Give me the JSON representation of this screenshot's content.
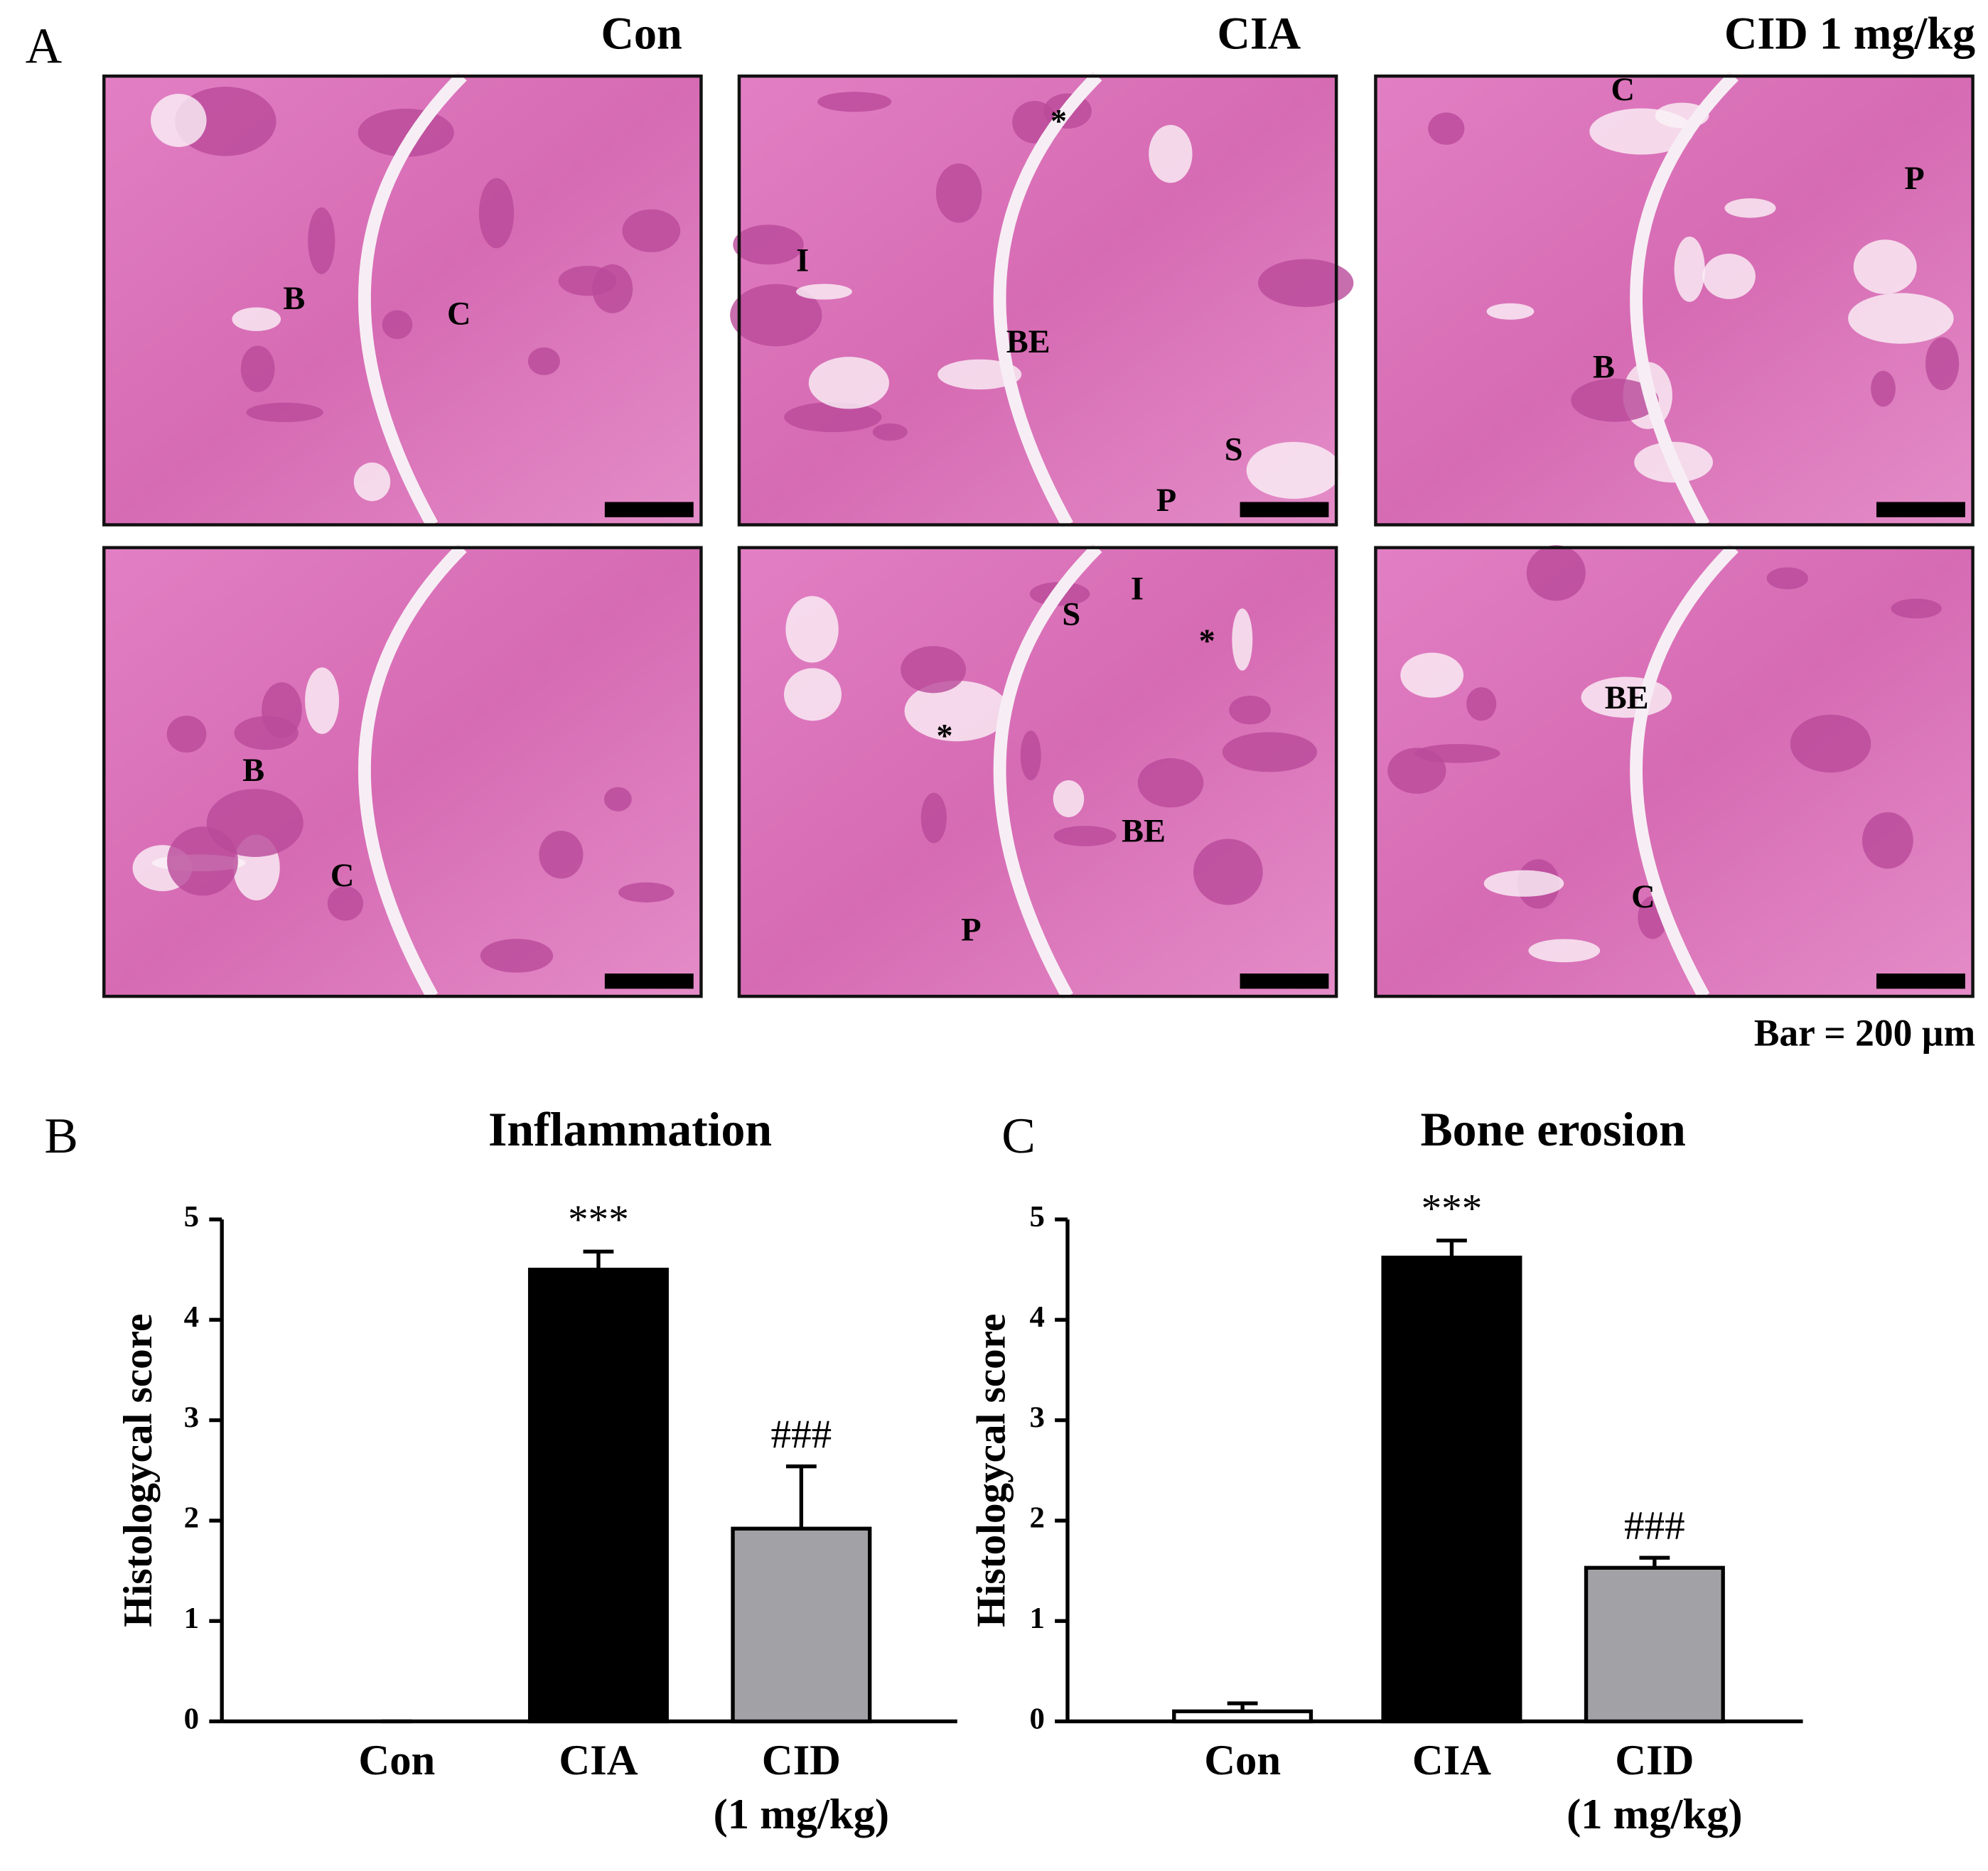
{
  "panel_a": {
    "label": "A",
    "columns": [
      "Con",
      "CIA",
      "CID 1 mg/kg"
    ],
    "images": [
      [
        "B",
        "C"
      ],
      [
        "*",
        "I",
        "BE",
        "S",
        "P"
      ],
      [
        "C",
        "P",
        "B"
      ],
      [
        "B",
        "C"
      ],
      [
        "S",
        "I",
        "*",
        "*",
        "BE",
        "P"
      ],
      [
        "BE",
        "C"
      ]
    ],
    "scale_note": "Bar = 200 µm"
  },
  "chart_data": [
    {
      "type": "bar",
      "panel_label": "B",
      "title": "Inflammation",
      "y_label": "Histologycal score",
      "categories": [
        "Con",
        "CIA",
        "CID\n(1 mg/kg)"
      ],
      "values": [
        0,
        4.5,
        1.92
      ],
      "errors": [
        0,
        0.18,
        0.62
      ],
      "colors": [
        "#ffffff",
        "#000000",
        "#a2a2a6"
      ],
      "annotations": [
        null,
        "***",
        "###"
      ],
      "ylim": [
        0,
        5
      ],
      "yticks": [
        0,
        1,
        2,
        3,
        4,
        5
      ]
    },
    {
      "type": "bar",
      "panel_label": "C",
      "title": "Bone erosion",
      "y_label": "Histologycal score",
      "categories": [
        "Con",
        "CIA",
        "CID\n(1 mg/kg)"
      ],
      "values": [
        0.1,
        4.62,
        1.53
      ],
      "errors": [
        0.08,
        0.17,
        0.1
      ],
      "colors": [
        "#ffffff",
        "#000000",
        "#a2a2a6"
      ],
      "annotations": [
        null,
        "***",
        "###"
      ],
      "ylim": [
        0,
        5
      ],
      "yticks": [
        0,
        1,
        2,
        3,
        4,
        5
      ]
    }
  ]
}
